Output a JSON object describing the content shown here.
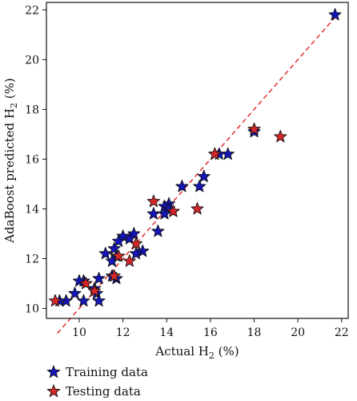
{
  "chart_data": {
    "type": "scatter",
    "title": "",
    "xlabel": {
      "main": "Actual H",
      "sub": "2",
      "rest": " (%)"
    },
    "ylabel": {
      "main": "AdaBoost predicted H",
      "sub": "2",
      "rest": " (%)"
    },
    "xlim": [
      8.5,
      22.3
    ],
    "ylim": [
      9.6,
      22.3
    ],
    "x_ticks": [
      10,
      12,
      14,
      16,
      18,
      20,
      22
    ],
    "y_ticks": [
      10,
      12,
      14,
      16,
      18,
      20,
      22
    ],
    "grid": false,
    "reference_line": {
      "style": "dashed",
      "color": "#e03030",
      "from": [
        9.0,
        9.0
      ],
      "to": [
        21.7,
        21.7
      ]
    },
    "legend_placement": "bottom-left",
    "series": [
      {
        "name": "Training data",
        "color": "#1515b8",
        "marker": "star",
        "points": [
          [
            21.7,
            21.8
          ],
          [
            18.0,
            17.1
          ],
          [
            16.8,
            16.2
          ],
          [
            16.4,
            16.2
          ],
          [
            16.2,
            16.2
          ],
          [
            15.7,
            15.3
          ],
          [
            15.5,
            14.9
          ],
          [
            14.7,
            14.9
          ],
          [
            14.1,
            14.2
          ],
          [
            13.9,
            14.1
          ],
          [
            14.1,
            14.0
          ],
          [
            14.3,
            13.9
          ],
          [
            13.9,
            13.8
          ],
          [
            13.4,
            13.8
          ],
          [
            13.6,
            13.1
          ],
          [
            12.9,
            12.3
          ],
          [
            12.6,
            12.2
          ],
          [
            12.5,
            13.0
          ],
          [
            12.3,
            12.8
          ],
          [
            12.0,
            12.9
          ],
          [
            11.8,
            12.7
          ],
          [
            11.6,
            12.4
          ],
          [
            11.7,
            12.1
          ],
          [
            11.2,
            12.2
          ],
          [
            11.5,
            11.9
          ],
          [
            11.7,
            11.2
          ],
          [
            11.5,
            11.3
          ],
          [
            10.9,
            11.2
          ],
          [
            10.2,
            11.1
          ],
          [
            10.3,
            11.0
          ],
          [
            10.7,
            10.8
          ],
          [
            10.8,
            10.6
          ],
          [
            9.8,
            10.6
          ],
          [
            10.0,
            11.1
          ],
          [
            9.4,
            10.3
          ],
          [
            9.1,
            10.3
          ],
          [
            10.2,
            10.3
          ],
          [
            10.9,
            10.3
          ]
        ]
      },
      {
        "name": "Testing data",
        "color": "#d42828",
        "marker": "star",
        "points": [
          [
            19.2,
            16.9
          ],
          [
            18.0,
            17.2
          ],
          [
            16.2,
            16.2
          ],
          [
            15.4,
            14.0
          ],
          [
            14.3,
            13.9
          ],
          [
            13.4,
            14.3
          ],
          [
            12.6,
            12.6
          ],
          [
            12.3,
            11.9
          ],
          [
            11.6,
            11.3
          ],
          [
            11.8,
            12.1
          ],
          [
            10.3,
            11.0
          ],
          [
            10.7,
            10.7
          ],
          [
            8.9,
            10.3
          ]
        ]
      }
    ]
  }
}
